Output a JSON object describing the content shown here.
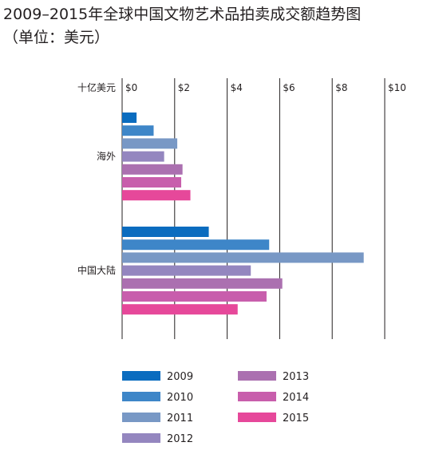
{
  "title_lines": [
    "2009–2015年全球中国文物艺术品拍卖成交额趋势图",
    "（单位：美元）"
  ],
  "chart_data": {
    "type": "bar",
    "orientation": "horizontal",
    "title": "2009–2015年全球中国文物艺术品拍卖成交额趋势图（单位：美元）",
    "unit_label": "十亿美元",
    "xlim": [
      0,
      10
    ],
    "ticks": [
      0,
      2,
      4,
      6,
      8,
      10
    ],
    "tick_labels": [
      "$0",
      "$2",
      "$4",
      "$6",
      "$8",
      "$10"
    ],
    "grid": true,
    "legend_position": "bottom",
    "categories": [
      "海外",
      "中国大陆"
    ],
    "series": [
      {
        "name": "2009",
        "color": "#0a6cbf",
        "values": [
          0.55,
          3.3
        ]
      },
      {
        "name": "2010",
        "color": "#3e86c8",
        "values": [
          1.2,
          5.6
        ]
      },
      {
        "name": "2011",
        "color": "#7898c5",
        "values": [
          2.1,
          9.2
        ]
      },
      {
        "name": "2012",
        "color": "#9486bf",
        "values": [
          1.6,
          4.9
        ]
      },
      {
        "name": "2013",
        "color": "#ab70b0",
        "values": [
          2.3,
          6.1
        ]
      },
      {
        "name": "2014",
        "color": "#c85eac",
        "values": [
          2.25,
          5.5
        ]
      },
      {
        "name": "2015",
        "color": "#e6489a",
        "values": [
          2.6,
          4.4
        ]
      }
    ]
  }
}
